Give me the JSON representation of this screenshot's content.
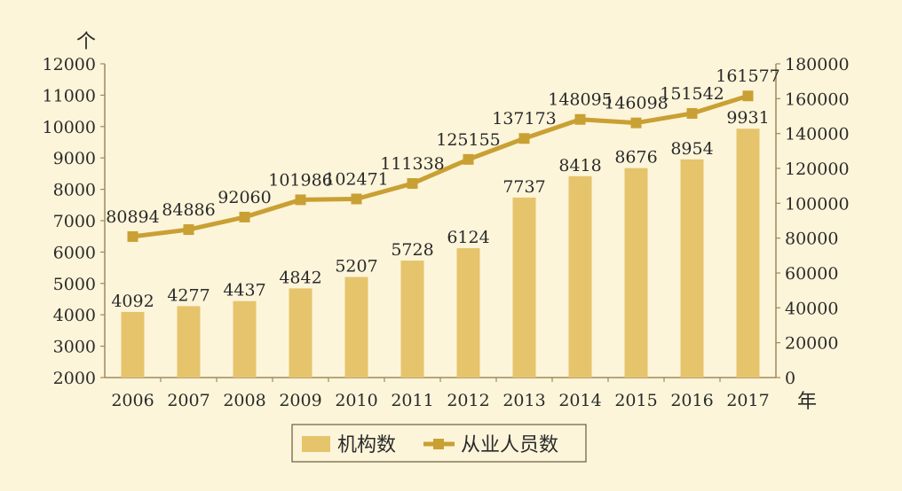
{
  "chart_data": {
    "type": "bar-line",
    "categories": [
      "2006",
      "2007",
      "2008",
      "2009",
      "2010",
      "2011",
      "2012",
      "2013",
      "2014",
      "2015",
      "2016",
      "2017"
    ],
    "series": [
      {
        "name": "机构数",
        "type": "bar",
        "axis": "left",
        "values": [
          4092,
          4277,
          4437,
          4842,
          5207,
          5728,
          6124,
          7737,
          8418,
          8676,
          8954,
          9931
        ]
      },
      {
        "name": "从业人员数",
        "type": "line",
        "axis": "right",
        "values": [
          80894,
          84886,
          92060,
          101986,
          102471,
          111338,
          125155,
          137173,
          148095,
          146098,
          151542,
          161577
        ]
      }
    ],
    "y_left": {
      "unit": "个",
      "min": 2000,
      "max": 12000,
      "ticks": [
        2000,
        3000,
        4000,
        5000,
        6000,
        7000,
        8000,
        9000,
        10000,
        11000,
        12000
      ]
    },
    "y_right": {
      "min": 0,
      "max": 180000,
      "ticks": [
        0,
        20000,
        40000,
        60000,
        80000,
        100000,
        120000,
        140000,
        160000,
        180000
      ]
    },
    "x_unit": "年",
    "legend_position": "bottom-center",
    "grid": false,
    "colors": {
      "bar": "#e6c46c",
      "line": "#c9a033",
      "axis": "#a08a5a",
      "background": "#fdf5da",
      "legend_border": "#6b5a3a"
    }
  }
}
